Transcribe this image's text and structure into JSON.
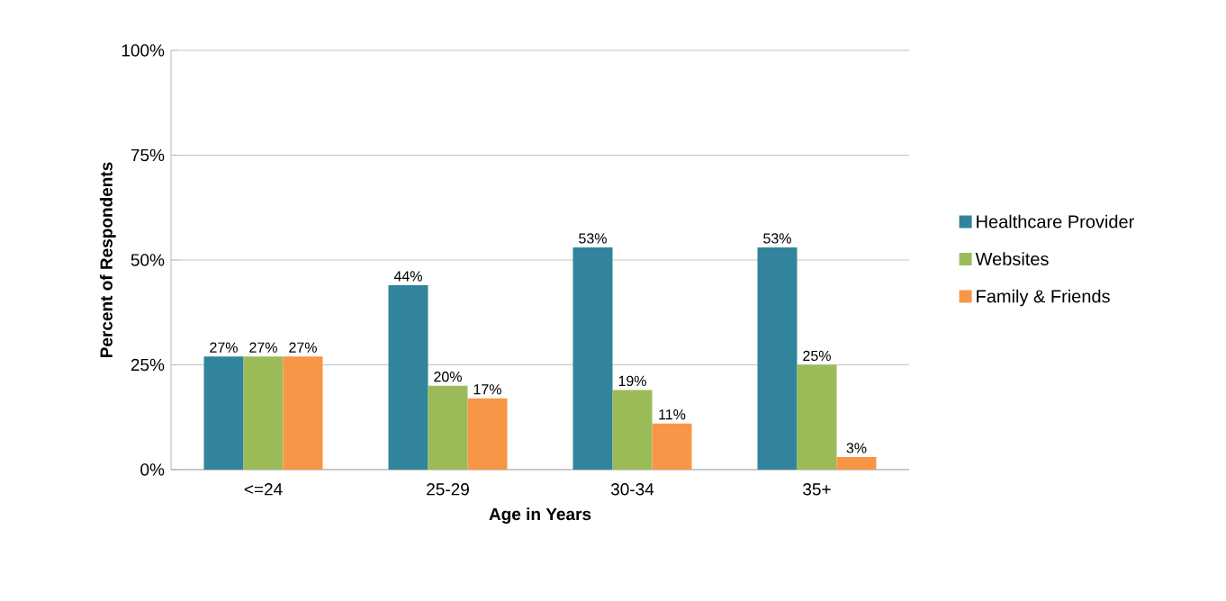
{
  "chart_data": {
    "type": "bar",
    "xlabel": "Age in Years",
    "ylabel": "Percent of Respondents",
    "categories": [
      "<=24",
      "25-29",
      "30-34",
      "35+"
    ],
    "series": [
      {
        "name": "Healthcare Provider",
        "color": "#31849b",
        "values": [
          27,
          44,
          53,
          53
        ],
        "value_labels": [
          "27%",
          "44%",
          "53%",
          "53%"
        ]
      },
      {
        "name": "Websites",
        "color": "#9bbb59",
        "values": [
          27,
          20,
          19,
          25
        ],
        "value_labels": [
          "27%",
          "20%",
          "19%",
          "25%"
        ]
      },
      {
        "name": "Family & Friends",
        "color": "#f79646",
        "values": [
          27,
          17,
          11,
          3
        ],
        "value_labels": [
          "27%",
          "17%",
          "11%",
          "3%"
        ]
      }
    ],
    "ylim": [
      0,
      100
    ],
    "yticks": [
      {
        "value": 0,
        "label": "0%"
      },
      {
        "value": 25,
        "label": "25%"
      },
      {
        "value": 50,
        "label": "50%"
      },
      {
        "value": 75,
        "label": "75%"
      },
      {
        "value": 100,
        "label": "100%"
      }
    ],
    "grid": "y",
    "legend": "right"
  }
}
